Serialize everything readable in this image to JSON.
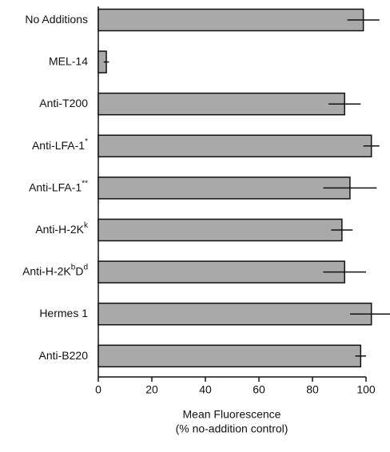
{
  "chart_data": {
    "type": "hbar",
    "categories": [
      [
        "No Additions"
      ],
      [
        "MEL-14"
      ],
      [
        "Anti-T200"
      ],
      [
        "Anti-LFA-1",
        "*"
      ],
      [
        "Anti-LFA-1",
        "**"
      ],
      [
        "Anti-H-2K",
        "k"
      ],
      [
        "Anti-H-2K",
        "b",
        "D",
        "d"
      ],
      [
        "Hermes 1"
      ],
      [
        "Anti-B220"
      ]
    ],
    "values": [
      99,
      3,
      92,
      102,
      94,
      91,
      92,
      102,
      98
    ],
    "errors": [
      6,
      1,
      6,
      3,
      10,
      4,
      8,
      8,
      2
    ],
    "color": "#a9a9a9",
    "xlim": [
      0,
      108
    ],
    "xticks": [
      0,
      20,
      40,
      60,
      80,
      100
    ],
    "x_label": [
      "Mean Fluorescence",
      "(% no-addition control)"
    ]
  }
}
